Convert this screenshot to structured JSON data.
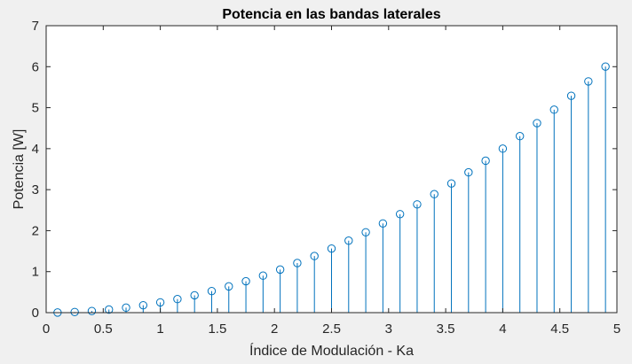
{
  "chart_data": {
    "type": "stem",
    "title": "Potencia en las bandas laterales",
    "xlabel": "Índice de Modulación - Ka",
    "ylabel": "Potencia [W]",
    "xlim": [
      0,
      5
    ],
    "ylim": [
      0,
      7
    ],
    "xticks": [
      0,
      0.5,
      1,
      1.5,
      2,
      2.5,
      3,
      3.5,
      4,
      4.5,
      5
    ],
    "xtick_labels": [
      "0",
      "0.5",
      "1",
      "1.5",
      "2",
      "2.5",
      "3",
      "3.5",
      "4",
      "4.5",
      "5"
    ],
    "yticks": [
      0,
      1,
      2,
      3,
      4,
      5,
      6,
      7
    ],
    "ytick_labels": [
      "0",
      "1",
      "2",
      "3",
      "4",
      "5",
      "6",
      "7"
    ],
    "grid": false,
    "marker": "circle-open",
    "color": "#0072bd",
    "x": [
      0.1,
      0.25,
      0.4,
      0.55,
      0.7,
      0.85,
      1.0,
      1.15,
      1.3,
      1.45,
      1.6,
      1.75,
      1.9,
      2.05,
      2.2,
      2.35,
      2.5,
      2.65,
      2.8,
      2.95,
      3.1,
      3.25,
      3.4,
      3.55,
      3.7,
      3.85,
      4.0,
      4.15,
      4.3,
      4.45,
      4.6,
      4.75,
      4.9
    ],
    "y": [
      0.0025,
      0.0156,
      0.04,
      0.0756,
      0.1225,
      0.1806,
      0.25,
      0.3306,
      0.4225,
      0.5256,
      0.64,
      0.7656,
      0.9025,
      1.0506,
      1.21,
      1.3806,
      1.5625,
      1.7556,
      1.96,
      2.1756,
      2.4025,
      2.6406,
      2.89,
      3.1506,
      3.4225,
      3.7056,
      4.0,
      4.3056,
      4.6225,
      4.9506,
      5.29,
      5.6406,
      6.0025
    ]
  }
}
